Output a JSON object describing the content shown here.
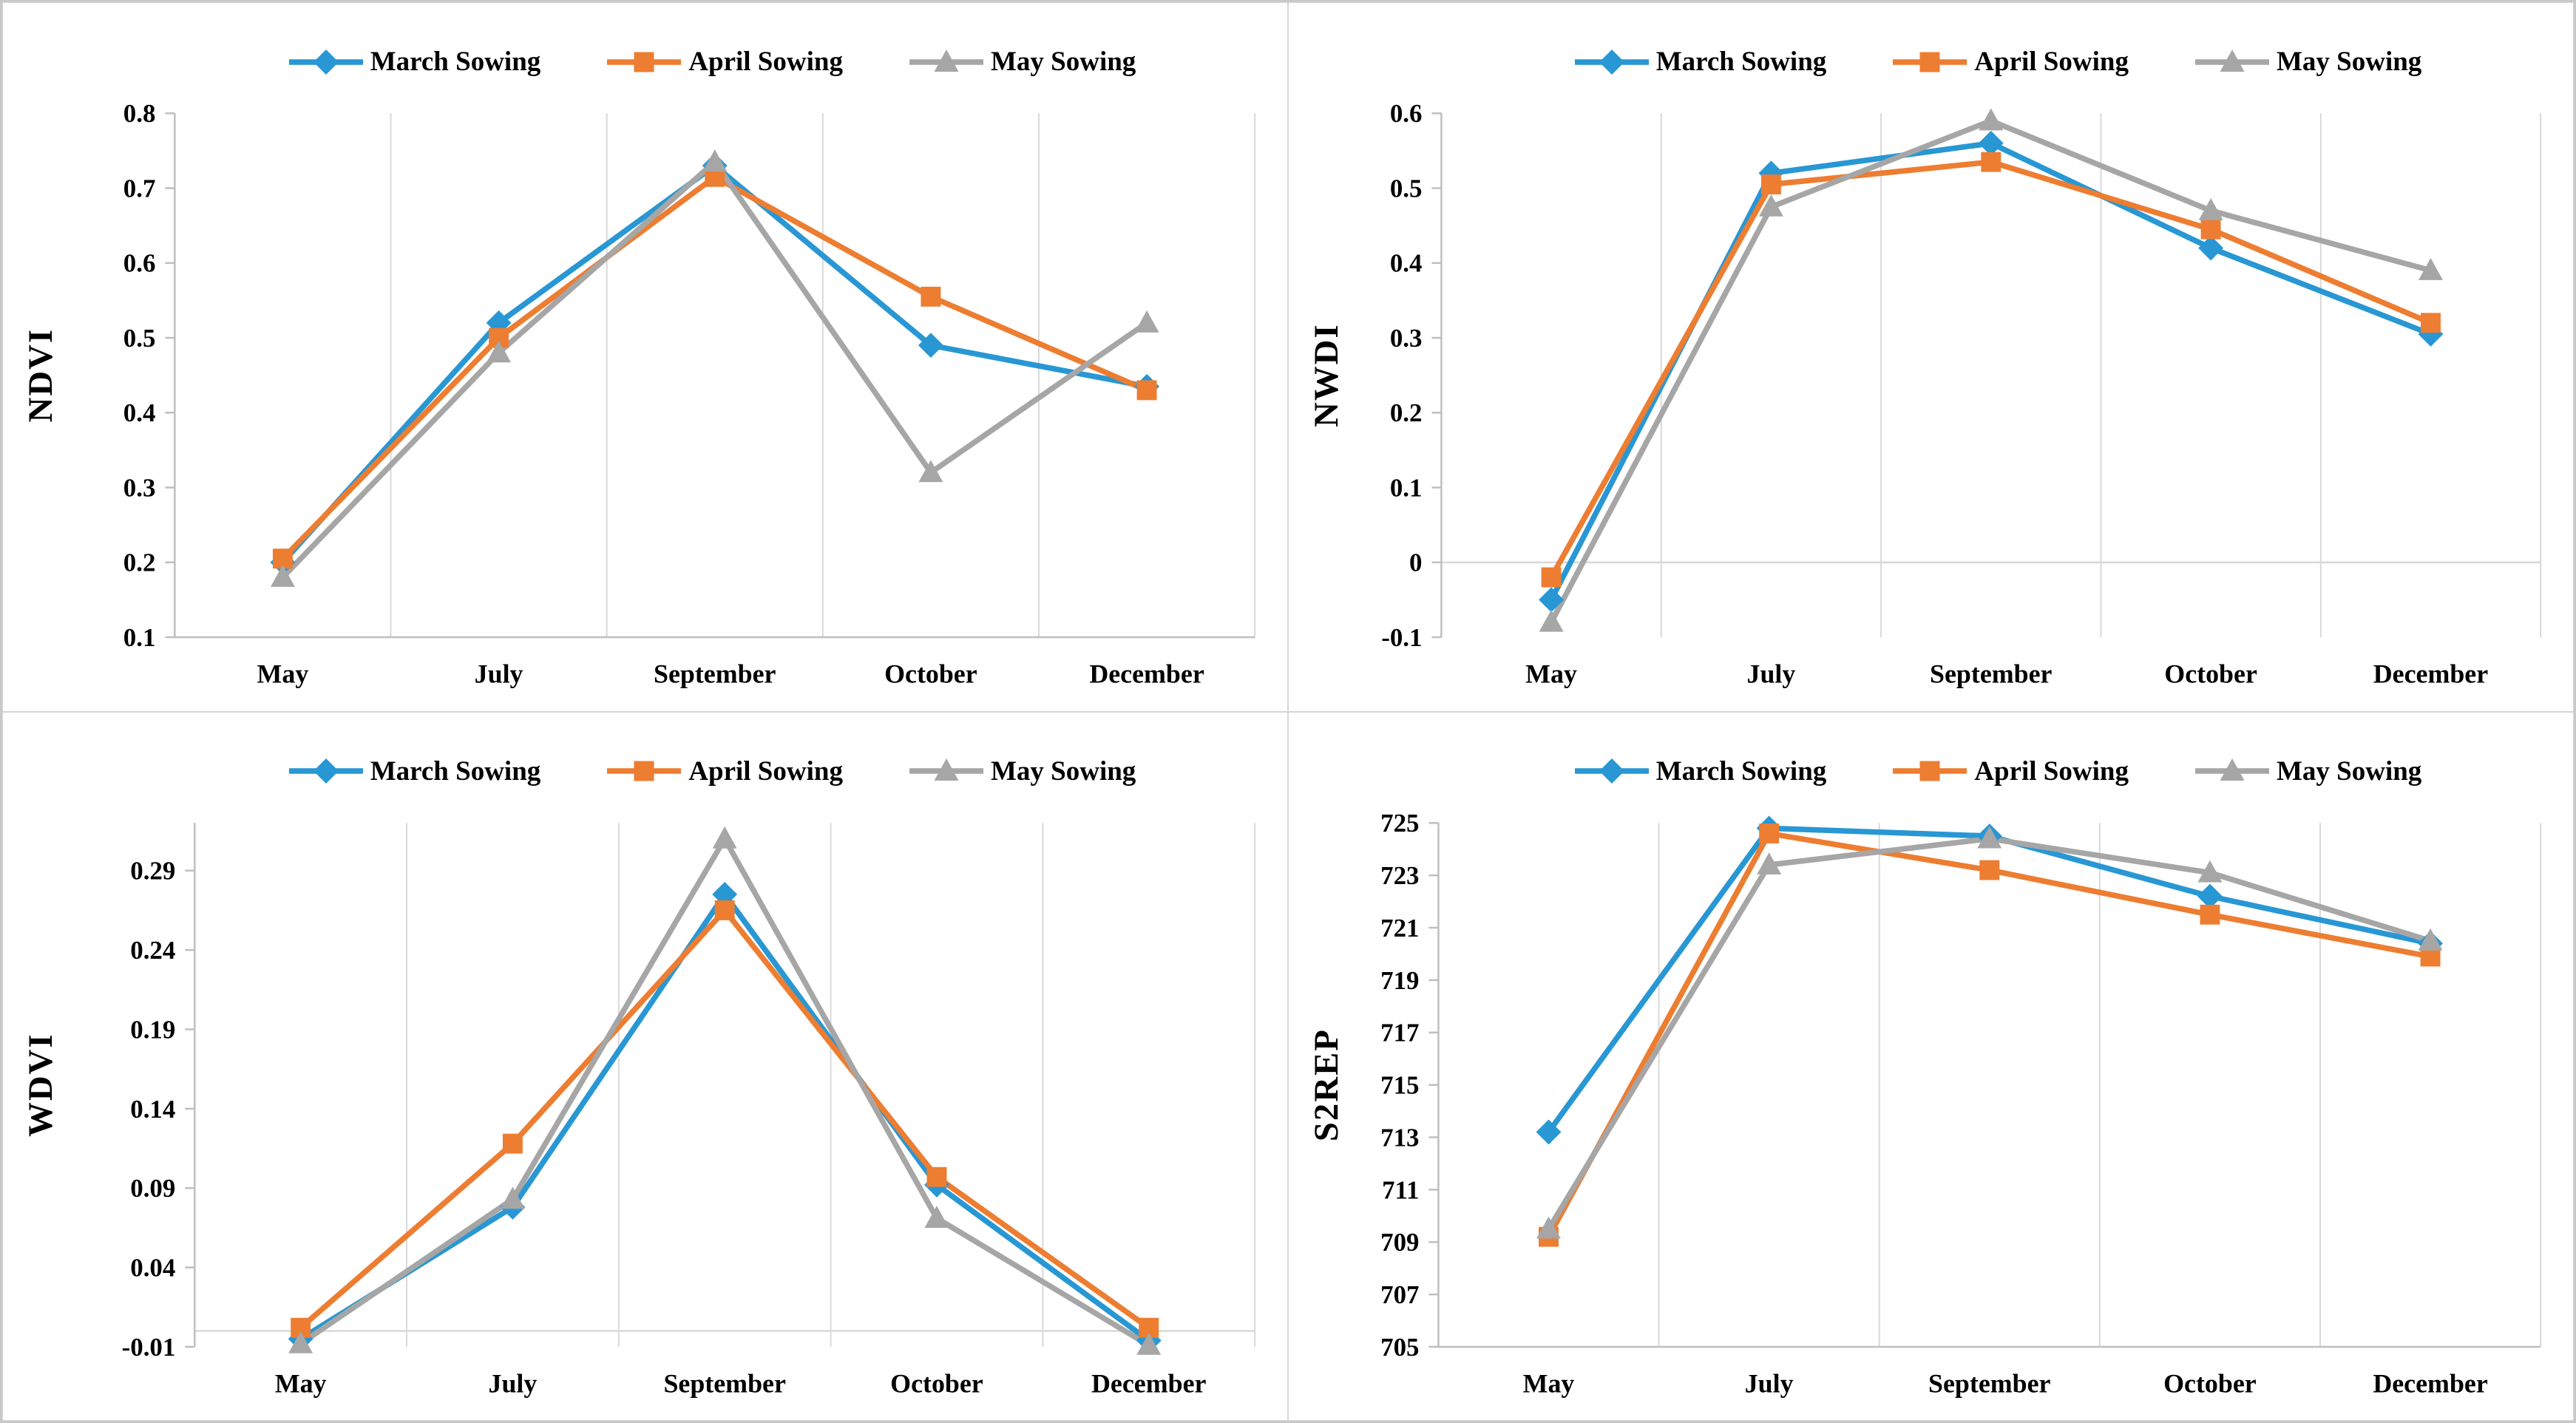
{
  "page": {
    "background": "#ffffff",
    "figure_border": "#c9c9c9",
    "panel_border": "#d6d6d6",
    "grid_color": "#d9d9d9",
    "axis_color": "#bfbfbf",
    "text_color": "#000000"
  },
  "categories": [
    "May",
    "July",
    "September",
    "October",
    "December"
  ],
  "legend": [
    {
      "label": "March Sowing",
      "marker": "diamond",
      "color": "#2897D4"
    },
    {
      "label": "April Sowing",
      "marker": "square",
      "color": "#ED7D31"
    },
    {
      "label": "May Sowing",
      "marker": "triangle",
      "color": "#A6A6A6"
    }
  ],
  "chart_data": [
    {
      "type": "line",
      "title": "",
      "xlabel": "",
      "ylabel": "NDVI",
      "categories": [
        "May",
        "July",
        "September",
        "October",
        "December"
      ],
      "ylim": [
        0.1,
        0.8
      ],
      "grid": "vertical-only",
      "legend_position": "top",
      "category_axis_at_zero": false,
      "yticks": [
        {
          "value": 0.8,
          "label": "0.8"
        },
        {
          "value": 0.7,
          "label": "0.7"
        },
        {
          "value": 0.6,
          "label": "0.6"
        },
        {
          "value": 0.5,
          "label": "0.5"
        },
        {
          "value": 0.4,
          "label": "0.4"
        },
        {
          "value": 0.3,
          "label": "0.3"
        },
        {
          "value": 0.2,
          "label": "0.2"
        },
        {
          "value": 0.1,
          "label": "0.1"
        }
      ],
      "series": [
        {
          "name": "March Sowing",
          "marker": "diamond",
          "color": "#2897D4",
          "values": [
            0.2,
            0.52,
            0.73,
            0.49,
            0.435
          ]
        },
        {
          "name": "April Sowing",
          "marker": "square",
          "color": "#ED7D31",
          "values": [
            0.205,
            0.5,
            0.715,
            0.555,
            0.43
          ]
        },
        {
          "name": "May Sowing",
          "marker": "triangle",
          "color": "#A6A6A6",
          "values": [
            0.18,
            0.48,
            0.735,
            0.32,
            0.52
          ]
        }
      ]
    },
    {
      "type": "line",
      "title": "",
      "xlabel": "",
      "ylabel": "NWDI",
      "categories": [
        "May",
        "July",
        "September",
        "October",
        "December"
      ],
      "ylim": [
        -0.1,
        0.6
      ],
      "grid": "vertical-only",
      "legend_position": "top",
      "category_axis_at_zero": true,
      "yticks": [
        {
          "value": 0.6,
          "label": "0.6"
        },
        {
          "value": 0.5,
          "label": "0.5"
        },
        {
          "value": 0.4,
          "label": "0.4"
        },
        {
          "value": 0.3,
          "label": "0.3"
        },
        {
          "value": 0.2,
          "label": "0.2"
        },
        {
          "value": 0.1,
          "label": "0.1"
        },
        {
          "value": 0,
          "label": "0"
        },
        {
          "value": -0.1,
          "label": "-0.1"
        }
      ],
      "series": [
        {
          "name": "March Sowing",
          "marker": "diamond",
          "color": "#2897D4",
          "values": [
            -0.05,
            0.52,
            0.56,
            0.42,
            0.305
          ]
        },
        {
          "name": "April Sowing",
          "marker": "square",
          "color": "#ED7D31",
          "values": [
            -0.02,
            0.505,
            0.535,
            0.445,
            0.32
          ]
        },
        {
          "name": "May Sowing",
          "marker": "triangle",
          "color": "#A6A6A6",
          "values": [
            -0.08,
            0.475,
            0.59,
            0.47,
            0.39
          ]
        }
      ]
    },
    {
      "type": "line",
      "title": "",
      "xlabel": "",
      "ylabel": "WDVI",
      "categories": [
        "May",
        "July",
        "September",
        "October",
        "December"
      ],
      "ylim": [
        -0.01,
        0.32
      ],
      "grid": "vertical-only",
      "legend_position": "top",
      "category_axis_at_zero": true,
      "yticks": [
        {
          "value": 0.29,
          "label": "0.29"
        },
        {
          "value": 0.24,
          "label": "0.24"
        },
        {
          "value": 0.19,
          "label": "0.19"
        },
        {
          "value": 0.14,
          "label": "0.14"
        },
        {
          "value": 0.09,
          "label": "0.09"
        },
        {
          "value": 0.04,
          "label": "0.04"
        },
        {
          "value": -0.01,
          "label": "-0.01"
        }
      ],
      "series": [
        {
          "name": "March Sowing",
          "marker": "diamond",
          "color": "#2897D4",
          "values": [
            -0.005,
            0.078,
            0.275,
            0.092,
            -0.006
          ]
        },
        {
          "name": "April Sowing",
          "marker": "square",
          "color": "#ED7D31",
          "values": [
            0.002,
            0.118,
            0.265,
            0.097,
            0.002
          ]
        },
        {
          "name": "May Sowing",
          "marker": "triangle",
          "color": "#A6A6A6",
          "values": [
            -0.008,
            0.083,
            0.31,
            0.071,
            -0.009
          ]
        }
      ]
    },
    {
      "type": "line",
      "title": "",
      "xlabel": "",
      "ylabel": "S2REP",
      "categories": [
        "May",
        "July",
        "September",
        "October",
        "December"
      ],
      "ylim": [
        705,
        725
      ],
      "grid": "vertical-only",
      "legend_position": "top",
      "category_axis_at_zero": false,
      "yticks": [
        {
          "value": 725,
          "label": "725"
        },
        {
          "value": 723,
          "label": "723"
        },
        {
          "value": 721,
          "label": "721"
        },
        {
          "value": 719,
          "label": "719"
        },
        {
          "value": 717,
          "label": "717"
        },
        {
          "value": 715,
          "label": "715"
        },
        {
          "value": 713,
          "label": "713"
        },
        {
          "value": 711,
          "label": "711"
        },
        {
          "value": 709,
          "label": "709"
        },
        {
          "value": 707,
          "label": "707"
        },
        {
          "value": 705,
          "label": "705"
        }
      ],
      "series": [
        {
          "name": "March Sowing",
          "marker": "diamond",
          "color": "#2897D4",
          "values": [
            713.2,
            724.8,
            724.5,
            722.2,
            720.4
          ]
        },
        {
          "name": "April Sowing",
          "marker": "square",
          "color": "#ED7D31",
          "values": [
            709.2,
            724.6,
            723.2,
            721.5,
            719.9
          ]
        },
        {
          "name": "May Sowing",
          "marker": "triangle",
          "color": "#A6A6A6",
          "values": [
            709.5,
            723.4,
            724.4,
            723.1,
            720.5
          ]
        }
      ]
    }
  ]
}
